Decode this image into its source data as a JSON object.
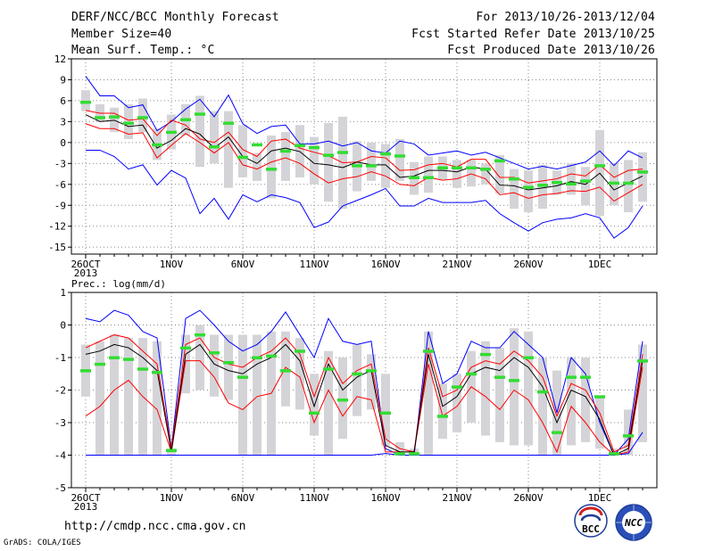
{
  "header": {
    "title": "DERF/NCC/BCC Monthly Forecast",
    "member_size": "Member Size=40",
    "variable": "Mean Surf. Temp.: °C",
    "period": "For 2013/10/26-2013/12/04",
    "fcst_started": "Fcst Started Refer Date 2013/10/25",
    "fcst_produced": "Fcst Produced Date 2013/10/26"
  },
  "footer": {
    "url": "http://cmdp.ncc.cma.gov.cn",
    "credit": "GrADS: COLA/IGES"
  },
  "logos": {
    "bcc": "BCC",
    "ncc": "NCC"
  },
  "colors": {
    "ensemble_max_min": "#0000ff",
    "spread": "#ff0000",
    "mean": "#000000",
    "median": "#33dd33",
    "box": "#d4d4d8"
  },
  "chart_data": [
    {
      "type": "line",
      "ylabel": "",
      "ylim": [
        -16,
        12
      ],
      "yticks": [
        12,
        9,
        6,
        3,
        0,
        -3,
        -6,
        -9,
        -12,
        -15
      ],
      "x_tick_labels": [
        {
          "day": 0,
          "label": "26OCT",
          "sub": "2013"
        },
        {
          "day": 6,
          "label": "1NOV"
        },
        {
          "day": 11,
          "label": "6NOV"
        },
        {
          "day": 16,
          "label": "11NOV"
        },
        {
          "day": 21,
          "label": "16NOV"
        },
        {
          "day": 26,
          "label": "21NOV"
        },
        {
          "day": 31,
          "label": "26NOV"
        },
        {
          "day": 36,
          "label": "1DEC"
        }
      ],
      "grid": true,
      "series": {
        "max": [
          9.5,
          6.7,
          6.7,
          5,
          5.4,
          1.7,
          3,
          4.8,
          6.2,
          3.7,
          6.8,
          2.7,
          1.3,
          2.3,
          2.5,
          -0.2,
          -0.2,
          0.2,
          -0.5,
          0,
          -1.2,
          -1.5,
          0.2,
          -0.2,
          -1.8,
          -1.5,
          -1.2,
          -1.8,
          -1.4,
          -2.2,
          -3,
          -3.8,
          -3.4,
          -3.8,
          -3.3,
          -2.8,
          -1.2,
          -3.3,
          -1.2,
          -2.2
        ],
        "upper": [
          4.6,
          4.2,
          4.2,
          3.2,
          3.4,
          1,
          3.2,
          2.5,
          0.5,
          0,
          1.5,
          -1,
          -2,
          0.2,
          0.5,
          -0.8,
          -1.4,
          -1.9,
          -2.9,
          -2.8,
          -2,
          -2.2,
          -4,
          -3.9,
          -3.2,
          -3,
          -3.5,
          -2.4,
          -2.4,
          -5,
          -5,
          -5.8,
          -5.5,
          -5.2,
          -4.5,
          -4.8,
          -3.2,
          -5,
          -4,
          -3.8
        ],
        "mean": [
          4,
          3,
          3.2,
          2.3,
          2.5,
          -0.8,
          0.3,
          2,
          1.2,
          -0.8,
          0.8,
          -2,
          -3,
          -1.2,
          -0.8,
          -1.3,
          -3,
          -3.2,
          -3.6,
          -2.8,
          -3.2,
          -3.2,
          -5,
          -4.8,
          -4,
          -4,
          -4.2,
          -3.5,
          -3.8,
          -6.1,
          -6.2,
          -6.8,
          -6.5,
          -6.2,
          -5.6,
          -6,
          -4.4,
          -6.8,
          -5.8,
          -4.8
        ],
        "lower": [
          2.7,
          2,
          2,
          1.2,
          1.4,
          -2.2,
          -0.4,
          1.3,
          0,
          -1.5,
          0,
          -3.2,
          -3.8,
          -2.8,
          -2.2,
          -3,
          -4.5,
          -5.8,
          -5.2,
          -4.9,
          -4.2,
          -4.8,
          -6,
          -6.2,
          -5,
          -5.4,
          -5.2,
          -4.5,
          -5.2,
          -7.5,
          -7.2,
          -8,
          -7.5,
          -7.3,
          -6.9,
          -7,
          -6.4,
          -8.4,
          -7.2,
          -6
        ],
        "min": [
          -1.1,
          -1.1,
          -2,
          -3.8,
          -3.2,
          -6.1,
          -4,
          -5.1,
          -10.2,
          -8,
          -11,
          -7.5,
          -8.5,
          -7.5,
          -7.9,
          -8.6,
          -12.2,
          -11.4,
          -9.1,
          -8.3,
          -7.5,
          -6.6,
          -9.1,
          -9.1,
          -8,
          -8.6,
          -8.6,
          -8.6,
          -8.3,
          -10.2,
          -11.5,
          -12.7,
          -11.5,
          -11,
          -10.8,
          -10.2,
          -10.8,
          -13.7,
          -12.2,
          -9.1
        ],
        "median": [
          5.8,
          3.6,
          3.7,
          2.8,
          3.6,
          -0.3,
          1.5,
          3.3,
          4.1,
          -0.6,
          2.8,
          -2.1,
          -0.3,
          -3.8,
          -1.2,
          -0.4,
          -0.7,
          -1.8,
          -1.4,
          -3.3,
          -3.3,
          -1.6,
          -1.9,
          -5,
          -5,
          -3.6,
          -3.6,
          -3.6,
          -3.8,
          -2.6,
          -5.2,
          -6.4,
          -6.1,
          -5.7,
          -5.9,
          -5.5,
          -3.3,
          -5.8,
          -5.8,
          -4.2
        ],
        "box_top": [
          7.5,
          5.5,
          5,
          5.5,
          6.3,
          2,
          4,
          5.5,
          6.7,
          4.5,
          4.5,
          2.5,
          -1.5,
          1,
          1.5,
          2.5,
          0.8,
          2.8,
          3.7,
          0.2,
          0,
          -0.2,
          0.5,
          -2.8,
          -2,
          -2,
          -2.5,
          -2.5,
          -3,
          -1.8,
          -3.8,
          -4,
          -3.2,
          -4,
          -3,
          -3.5,
          1.8,
          -3,
          -2.5,
          -1.4
        ],
        "box_bot": [
          4.5,
          3,
          1.5,
          0.5,
          1.5,
          -2.5,
          -1,
          1,
          -3.5,
          -3,
          -6.5,
          -5,
          -5.5,
          -8,
          -5.5,
          -5,
          -6,
          -8.5,
          -9.5,
          -7,
          -5.5,
          -6.5,
          -5.5,
          -7.5,
          -7.2,
          -5.3,
          -6.5,
          -6.3,
          -6,
          -7.3,
          -9.5,
          -10,
          -9.5,
          -7.5,
          -7.5,
          -9,
          -10.5,
          -9,
          -10,
          -8.5
        ]
      }
    },
    {
      "type": "line",
      "title": "Prec.: log(mm/d)",
      "ylim": [
        -5,
        1
      ],
      "yticks": [
        1,
        0,
        -1,
        -2,
        -3,
        -4,
        -5
      ],
      "x_tick_labels": [
        {
          "day": 0,
          "label": "26OCT",
          "sub": "2013"
        },
        {
          "day": 6,
          "label": "1NOV"
        },
        {
          "day": 11,
          "label": "6NOV"
        },
        {
          "day": 16,
          "label": "11NOV"
        },
        {
          "day": 21,
          "label": "16NOV"
        },
        {
          "day": 26,
          "label": "21NOV"
        },
        {
          "day": 31,
          "label": "26NOV"
        },
        {
          "day": 36,
          "label": "1DEC"
        }
      ],
      "grid": true,
      "series": {
        "max": [
          0.2,
          0.1,
          0.45,
          0.3,
          -0.2,
          -0.4,
          -3.8,
          0.2,
          0.45,
          0,
          -0.5,
          -0.8,
          -0.6,
          -0.2,
          0.4,
          -0.3,
          -1,
          0.2,
          -0.5,
          -0.6,
          -0.5,
          -3.8,
          -4,
          -4,
          -0.2,
          -1.8,
          -1.5,
          -0.5,
          -0.7,
          -0.7,
          -0.2,
          -0.6,
          -1,
          -2.7,
          -1,
          -1.5,
          -3,
          -4,
          -3.5,
          -0.5
        ],
        "upper": [
          -0.7,
          -0.5,
          -0.3,
          -0.4,
          -0.8,
          -1.2,
          -3.8,
          -0.6,
          -0.4,
          -1,
          -1.2,
          -1.3,
          -1,
          -0.8,
          -0.4,
          -0.9,
          -2.2,
          -1,
          -1.8,
          -1.4,
          -1.2,
          -3.5,
          -3.8,
          -3.9,
          -0.7,
          -2.2,
          -2,
          -1.3,
          -1.1,
          -1.2,
          -0.8,
          -1.1,
          -1.6,
          -2.8,
          -1.8,
          -2,
          -2.7,
          -3.9,
          -3.7,
          -0.9
        ],
        "mean": [
          -0.9,
          -0.8,
          -0.6,
          -0.7,
          -1,
          -1.4,
          -3.9,
          -0.9,
          -0.6,
          -1.2,
          -1.4,
          -1.5,
          -1.2,
          -1,
          -0.6,
          -1.1,
          -2.5,
          -1.2,
          -2,
          -1.6,
          -1.4,
          -3.7,
          -3.9,
          -3.9,
          -0.9,
          -2.5,
          -2.2,
          -1.5,
          -1.3,
          -1.4,
          -1,
          -1.3,
          -1.9,
          -3,
          -2,
          -2.2,
          -2.9,
          -4,
          -3.8,
          -1.1
        ],
        "lower": [
          -2.8,
          -2.5,
          -2,
          -1.7,
          -2.2,
          -2.6,
          -3.9,
          -1.1,
          -1.1,
          -1.6,
          -2.4,
          -2.6,
          -2.2,
          -2.1,
          -1.3,
          -1.6,
          -3,
          -2,
          -2.8,
          -2.2,
          -2.3,
          -3.9,
          -3.9,
          -3.9,
          -1.2,
          -2.8,
          -2.5,
          -1.9,
          -2.2,
          -2.6,
          -2,
          -2.3,
          -3,
          -3.9,
          -2.5,
          -3,
          -3.6,
          -4,
          -3.9,
          -1.3
        ],
        "min": [
          -4,
          -4,
          -4,
          -4,
          -4,
          -4,
          -4,
          -4,
          -4,
          -4,
          -4,
          -4,
          -4,
          -4,
          -4,
          -4,
          -4,
          -4,
          -4,
          -4,
          -4,
          -3.95,
          -4,
          -4,
          -4,
          -4,
          -4,
          -4,
          -4,
          -4,
          -4,
          -4,
          -4,
          -4,
          -4,
          -4,
          -4,
          -4,
          -3.95,
          -3.3
        ],
        "median": [
          -1.4,
          -1.2,
          -1,
          -1.05,
          -1.35,
          -1.45,
          -3.85,
          -0.7,
          -0.3,
          -0.85,
          -1.15,
          -1.6,
          -1,
          -0.95,
          -1.4,
          -0.8,
          -2.7,
          -1.35,
          -2.3,
          -1.5,
          -1.4,
          -2.7,
          -3.95,
          -3.95,
          -0.8,
          -2.8,
          -1.9,
          -1.5,
          -0.9,
          -1.6,
          -1.7,
          -1,
          -2.05,
          -3.3,
          -1.6,
          -1.6,
          -2.2,
          -3.95,
          -3.4,
          -1.1
        ],
        "box_top": [
          -0.6,
          -0.5,
          -0.3,
          -0.4,
          -0.4,
          -0.5,
          -3.8,
          -0.3,
          0,
          -0.3,
          -0.3,
          -0.3,
          -0.3,
          -0.2,
          -0.2,
          -0.4,
          -1.5,
          -0.8,
          -1,
          -0.6,
          -0.9,
          -1.5,
          -3.6,
          -3.8,
          -0.2,
          -1.8,
          -1.5,
          -0.8,
          -0.5,
          -0.7,
          -0.1,
          -0.2,
          -1,
          -1.4,
          -1,
          -1,
          -2.2,
          -3.8,
          -2.6,
          -0.6
        ],
        "box_bot": [
          -2.2,
          -4,
          -4,
          -4,
          -4,
          -4,
          -4,
          -2.1,
          -2,
          -2.2,
          -2.3,
          -4,
          -4,
          -4,
          -2.5,
          -2.6,
          -3.4,
          -4,
          -3.5,
          -2.8,
          -2.6,
          -3.7,
          -4,
          -4,
          -4,
          -3.5,
          -3.3,
          -3,
          -3.4,
          -3.6,
          -3.7,
          -3.7,
          -4,
          -4,
          -3.7,
          -3.6,
          -3.8,
          -4,
          -4,
          -3.6
        ]
      }
    }
  ]
}
